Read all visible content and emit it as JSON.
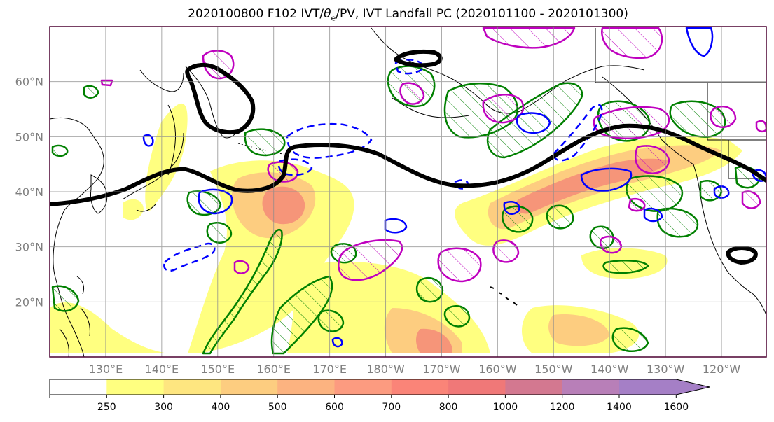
{
  "title": {
    "prefix": "2020100800 F102 IVT/",
    "theta": "θ",
    "theta_sub": "e",
    "suffix": "/PV, IVT Landfall PC (2020101100 - 2020101300)"
  },
  "map": {
    "projection": "equirectangular",
    "lon_range_deg_east": [
      120,
      248
    ],
    "lat_range": [
      10,
      70
    ],
    "lat_ticks": [
      {
        "value": 20,
        "label": "20°N"
      },
      {
        "value": 30,
        "label": "30°N"
      },
      {
        "value": 40,
        "label": "40°N"
      },
      {
        "value": 50,
        "label": "50°N"
      },
      {
        "value": 60,
        "label": "60°N"
      }
    ],
    "lon_ticks": [
      {
        "value": 130,
        "label": "130°E"
      },
      {
        "value": 140,
        "label": "140°E"
      },
      {
        "value": 150,
        "label": "150°E"
      },
      {
        "value": 160,
        "label": "160°E"
      },
      {
        "value": 170,
        "label": "170°E"
      },
      {
        "value": 180,
        "label": "180°W"
      },
      {
        "value": 190,
        "label": "170°W"
      },
      {
        "value": 200,
        "label": "160°W"
      },
      {
        "value": 210,
        "label": "150°W"
      },
      {
        "value": 220,
        "label": "140°W"
      },
      {
        "value": 230,
        "label": "130°W"
      },
      {
        "value": 240,
        "label": "120°W"
      }
    ],
    "gridlines": true,
    "frame_color": "#4b0030"
  },
  "colorbar": {
    "levels": [
      "250",
      "300",
      "400",
      "500",
      "600",
      "700",
      "800",
      "1000",
      "1200",
      "1400",
      "1600"
    ],
    "colors": [
      "#ffffff",
      "#ffff80",
      "#fee680",
      "#fdcd80",
      "#fcb380",
      "#fc9b80",
      "#fa8478",
      "#f07878",
      "#d37890",
      "#b87fb8",
      "#a57fc6"
    ],
    "extend": "max"
  },
  "colors": {
    "ivt_low": "#ffff80",
    "ivt_mid": "#fcb380",
    "ivt_high": "#f27a6e",
    "theta_e_contour": "#008000",
    "pv_contour": "#bf00bf",
    "neg_contour": "#0000ff",
    "landfall_pc": "#000000",
    "coast": "#000000"
  }
}
